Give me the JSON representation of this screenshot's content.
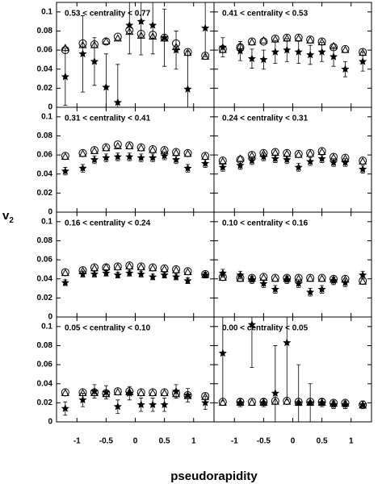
{
  "x_label": "pseudorapidity",
  "y_label": {
    "base": "v",
    "sub": "2"
  },
  "chart_data": [
    {
      "type": "scatter",
      "title": "0.53 < centrality < 0.77",
      "x": [
        -1.2,
        -0.9,
        -0.7,
        -0.5,
        -0.3,
        -0.1,
        0.1,
        0.3,
        0.5,
        0.7,
        0.9,
        1.2
      ],
      "series": [
        {
          "marker": "circle",
          "color": "#000000",
          "values": [
            0.06,
            0.067,
            0.066,
            0.069,
            0.074,
            0.081,
            0.077,
            0.076,
            0.073,
            0.067,
            0.058,
            0.054
          ]
        },
        {
          "marker": "triangle",
          "color": "#000000",
          "values": [
            0.062,
            0.065,
            0.065,
            0.069,
            0.072,
            0.079,
            0.075,
            0.074,
            0.072,
            0.063,
            0.057,
            0.053
          ]
        },
        {
          "marker": "star",
          "color": "#000000",
          "values": [
            0.032,
            0.056,
            0.048,
            0.021,
            0.005,
            0.086,
            0.09,
            0.086,
            0.073,
            0.06,
            0.019,
            0.083
          ],
          "errors": [
            0.03,
            0.04,
            0.025,
            0.035,
            0.04,
            0.03,
            0.035,
            0.03,
            0.03,
            0.02,
            0.04,
            0.03
          ]
        }
      ],
      "xlim": [
        -1.35,
        1.35
      ],
      "ylim": [
        0,
        0.11
      ],
      "xticks": [
        -1,
        -0.5,
        0,
        0.5,
        1
      ],
      "yticks": [
        0,
        0.02,
        0.04,
        0.06,
        0.08,
        0.1
      ]
    },
    {
      "type": "scatter",
      "title": "0.41 < centrality < 0.53",
      "x": [
        -1.2,
        -0.9,
        -0.7,
        -0.5,
        -0.3,
        -0.1,
        0.1,
        0.3,
        0.5,
        0.7,
        0.9,
        1.2
      ],
      "series": [
        {
          "marker": "circle",
          "color": "#000000",
          "values": [
            0.061,
            0.063,
            0.069,
            0.069,
            0.072,
            0.073,
            0.073,
            0.071,
            0.069,
            0.063,
            0.061,
            0.058
          ]
        },
        {
          "marker": "triangle",
          "color": "#000000",
          "values": [
            0.06,
            0.064,
            0.068,
            0.07,
            0.071,
            0.072,
            0.072,
            0.07,
            0.068,
            0.064,
            0.06,
            0.057
          ]
        },
        {
          "marker": "star",
          "color": "#000000",
          "values": [
            0.063,
            0.059,
            0.051,
            0.05,
            0.058,
            0.06,
            0.058,
            0.055,
            0.058,
            0.053,
            0.04,
            0.048
          ],
          "errors": [
            0.01,
            0.01,
            0.01,
            0.01,
            0.012,
            0.012,
            0.012,
            0.01,
            0.01,
            0.01,
            0.008,
            0.01
          ]
        }
      ],
      "xlim": [
        -1.35,
        1.35
      ],
      "ylim": [
        0,
        0.11
      ],
      "xticks": [
        -1,
        -0.5,
        0,
        0.5,
        1
      ],
      "yticks": [
        0,
        0.02,
        0.04,
        0.06,
        0.08,
        0.1
      ]
    },
    {
      "type": "scatter",
      "title": "0.31 < centrality < 0.41",
      "x": [
        -1.2,
        -0.9,
        -0.7,
        -0.5,
        -0.3,
        -0.1,
        0.1,
        0.3,
        0.5,
        0.7,
        0.9,
        1.2
      ],
      "series": [
        {
          "marker": "circle",
          "color": "#000000",
          "values": [
            0.059,
            0.062,
            0.065,
            0.068,
            0.071,
            0.07,
            0.068,
            0.066,
            0.065,
            0.063,
            0.062,
            0.059
          ]
        },
        {
          "marker": "triangle",
          "color": "#000000",
          "values": [
            0.058,
            0.061,
            0.064,
            0.067,
            0.069,
            0.069,
            0.067,
            0.065,
            0.064,
            0.062,
            0.061,
            0.058
          ]
        },
        {
          "marker": "star",
          "color": "#000000",
          "values": [
            0.043,
            0.046,
            0.055,
            0.057,
            0.058,
            0.058,
            0.057,
            0.057,
            0.059,
            0.055,
            0.046,
            0.051
          ],
          "errors": [
            0.004,
            0.004,
            0.004,
            0.004,
            0.004,
            0.004,
            0.004,
            0.004,
            0.004,
            0.004,
            0.004,
            0.004
          ]
        }
      ],
      "xlim": [
        -1.35,
        1.35
      ],
      "ylim": [
        0,
        0.11
      ],
      "xticks": [
        -1,
        -0.5,
        0,
        0.5,
        1
      ],
      "yticks": [
        0,
        0.02,
        0.04,
        0.06,
        0.08,
        0.1
      ]
    },
    {
      "type": "scatter",
      "title": "0.24 < centrality < 0.31",
      "x": [
        -1.2,
        -0.9,
        -0.7,
        -0.5,
        -0.3,
        -0.1,
        0.1,
        0.3,
        0.5,
        0.7,
        0.9,
        1.2
      ],
      "series": [
        {
          "marker": "circle",
          "color": "#000000",
          "values": [
            0.054,
            0.055,
            0.06,
            0.062,
            0.063,
            0.062,
            0.061,
            0.062,
            0.064,
            0.058,
            0.057,
            0.054
          ]
        },
        {
          "marker": "triangle",
          "color": "#000000",
          "values": [
            0.053,
            0.056,
            0.059,
            0.061,
            0.062,
            0.061,
            0.06,
            0.061,
            0.063,
            0.057,
            0.056,
            0.053
          ]
        },
        {
          "marker": "star",
          "color": "#000000",
          "values": [
            0.047,
            0.049,
            0.054,
            0.058,
            0.056,
            0.055,
            0.047,
            0.053,
            0.056,
            0.052,
            0.052,
            0.045
          ],
          "errors": [
            0.004,
            0.004,
            0.004,
            0.004,
            0.004,
            0.004,
            0.004,
            0.004,
            0.004,
            0.004,
            0.004,
            0.004
          ]
        }
      ],
      "xlim": [
        -1.35,
        1.35
      ],
      "ylim": [
        0,
        0.11
      ],
      "xticks": [
        -1,
        -0.5,
        0,
        0.5,
        1
      ],
      "yticks": [
        0,
        0.02,
        0.04,
        0.06,
        0.08,
        0.1
      ]
    },
    {
      "type": "scatter",
      "title": "0.16 < centrality < 0.24",
      "x": [
        -1.2,
        -0.9,
        -0.7,
        -0.5,
        -0.3,
        -0.1,
        0.1,
        0.3,
        0.5,
        0.7,
        0.9,
        1.2
      ],
      "series": [
        {
          "marker": "circle",
          "color": "#000000",
          "values": [
            0.047,
            0.049,
            0.052,
            0.052,
            0.053,
            0.054,
            0.053,
            0.052,
            0.051,
            0.05,
            0.048,
            0.045
          ]
        },
        {
          "marker": "triangle",
          "color": "#000000",
          "values": [
            0.046,
            0.048,
            0.051,
            0.052,
            0.052,
            0.053,
            0.052,
            0.051,
            0.05,
            0.049,
            0.047,
            0.044
          ]
        },
        {
          "marker": "star",
          "color": "#000000",
          "values": [
            0.036,
            0.045,
            0.045,
            0.046,
            0.044,
            0.046,
            0.045,
            0.042,
            0.044,
            0.042,
            0.038,
            0.044
          ],
          "errors": [
            0.003,
            0.003,
            0.003,
            0.003,
            0.003,
            0.003,
            0.003,
            0.003,
            0.003,
            0.003,
            0.003,
            0.003
          ]
        }
      ],
      "xlim": [
        -1.35,
        1.35
      ],
      "ylim": [
        0,
        0.11
      ],
      "xticks": [
        -1,
        -0.5,
        0,
        0.5,
        1
      ],
      "yticks": [
        0,
        0.02,
        0.04,
        0.06,
        0.08,
        0.1
      ]
    },
    {
      "type": "scatter",
      "title": "0.10 < centrality < 0.16",
      "x": [
        -1.2,
        -0.9,
        -0.7,
        -0.5,
        -0.3,
        -0.1,
        0.1,
        0.3,
        0.5,
        0.7,
        0.9,
        1.2
      ],
      "series": [
        {
          "marker": "circle",
          "color": "#000000",
          "values": [
            0.042,
            0.041,
            0.041,
            0.042,
            0.041,
            0.041,
            0.041,
            0.041,
            0.041,
            0.04,
            0.04,
            0.038
          ]
        },
        {
          "marker": "triangle",
          "color": "#000000",
          "values": [
            0.041,
            0.04,
            0.04,
            0.041,
            0.04,
            0.04,
            0.04,
            0.04,
            0.04,
            0.039,
            0.039,
            0.037
          ]
        },
        {
          "marker": "star",
          "color": "#000000",
          "values": [
            0.046,
            0.044,
            0.039,
            0.035,
            0.029,
            0.039,
            0.035,
            0.026,
            0.029,
            0.038,
            0.036,
            0.044
          ],
          "errors": [
            0.004,
            0.004,
            0.004,
            0.004,
            0.004,
            0.004,
            0.004,
            0.004,
            0.004,
            0.004,
            0.004,
            0.004
          ]
        }
      ],
      "xlim": [
        -1.35,
        1.35
      ],
      "ylim": [
        0,
        0.11
      ],
      "xticks": [
        -1,
        -0.5,
        0,
        0.5,
        1
      ],
      "yticks": [
        0,
        0.02,
        0.04,
        0.06,
        0.08,
        0.1
      ]
    },
    {
      "type": "scatter",
      "title": "0.05 < centrality < 0.10",
      "x": [
        -1.2,
        -0.9,
        -0.7,
        -0.5,
        -0.3,
        -0.1,
        0.1,
        0.3,
        0.5,
        0.7,
        0.9,
        1.2
      ],
      "series": [
        {
          "marker": "circle",
          "color": "#000000",
          "values": [
            0.031,
            0.031,
            0.031,
            0.03,
            0.032,
            0.032,
            0.031,
            0.031,
            0.031,
            0.03,
            0.028,
            0.027
          ]
        },
        {
          "marker": "triangle",
          "color": "#000000",
          "values": [
            0.03,
            0.03,
            0.03,
            0.029,
            0.031,
            0.031,
            0.03,
            0.03,
            0.03,
            0.029,
            0.027,
            0.026
          ]
        },
        {
          "marker": "star",
          "color": "#000000",
          "values": [
            0.014,
            0.023,
            0.032,
            0.031,
            0.016,
            0.03,
            0.018,
            0.018,
            0.018,
            0.032,
            0.028,
            0.02
          ],
          "errors": [
            0.007,
            0.007,
            0.007,
            0.007,
            0.007,
            0.007,
            0.007,
            0.007,
            0.007,
            0.007,
            0.007,
            0.007
          ]
        }
      ],
      "xlim": [
        -1.35,
        1.35
      ],
      "ylim": [
        0,
        0.11
      ],
      "xticks": [
        -1,
        -0.5,
        0,
        0.5,
        1
      ],
      "yticks": [
        0,
        0.02,
        0.04,
        0.06,
        0.08,
        0.1
      ]
    },
    {
      "type": "scatter",
      "title": "0.00 < centrality < 0.05",
      "x": [
        -1.2,
        -0.9,
        -0.7,
        -0.5,
        -0.3,
        -0.1,
        0.1,
        0.3,
        0.5,
        0.7,
        0.9,
        1.2
      ],
      "series": [
        {
          "marker": "circle",
          "color": "#000000",
          "values": [
            0.021,
            0.021,
            0.021,
            0.021,
            0.022,
            0.022,
            0.021,
            0.021,
            0.021,
            0.02,
            0.02,
            0.018
          ]
        },
        {
          "marker": "triangle",
          "color": "#000000",
          "values": [
            0.02,
            0.02,
            0.02,
            0.02,
            0.021,
            0.021,
            0.02,
            0.02,
            0.02,
            0.019,
            0.019,
            0.017
          ]
        },
        {
          "marker": "star",
          "color": "#000000",
          "values": [
            0.072,
            0.02,
            0.102,
            0.02,
            0.03,
            0.083,
            0.02,
            0.02,
            0.02,
            0.018,
            0.018,
            0.018
          ],
          "errors": [
            0.05,
            0.004,
            0.045,
            0.004,
            0.05,
            0.06,
            0.04,
            0.02,
            0.004,
            0.004,
            0.004,
            0.004
          ]
        }
      ],
      "xlim": [
        -1.35,
        1.35
      ],
      "ylim": [
        0,
        0.11
      ],
      "xticks": [
        -1,
        -0.5,
        0,
        0.5,
        1
      ],
      "yticks": [
        0,
        0.02,
        0.04,
        0.06,
        0.08,
        0.1
      ]
    }
  ]
}
